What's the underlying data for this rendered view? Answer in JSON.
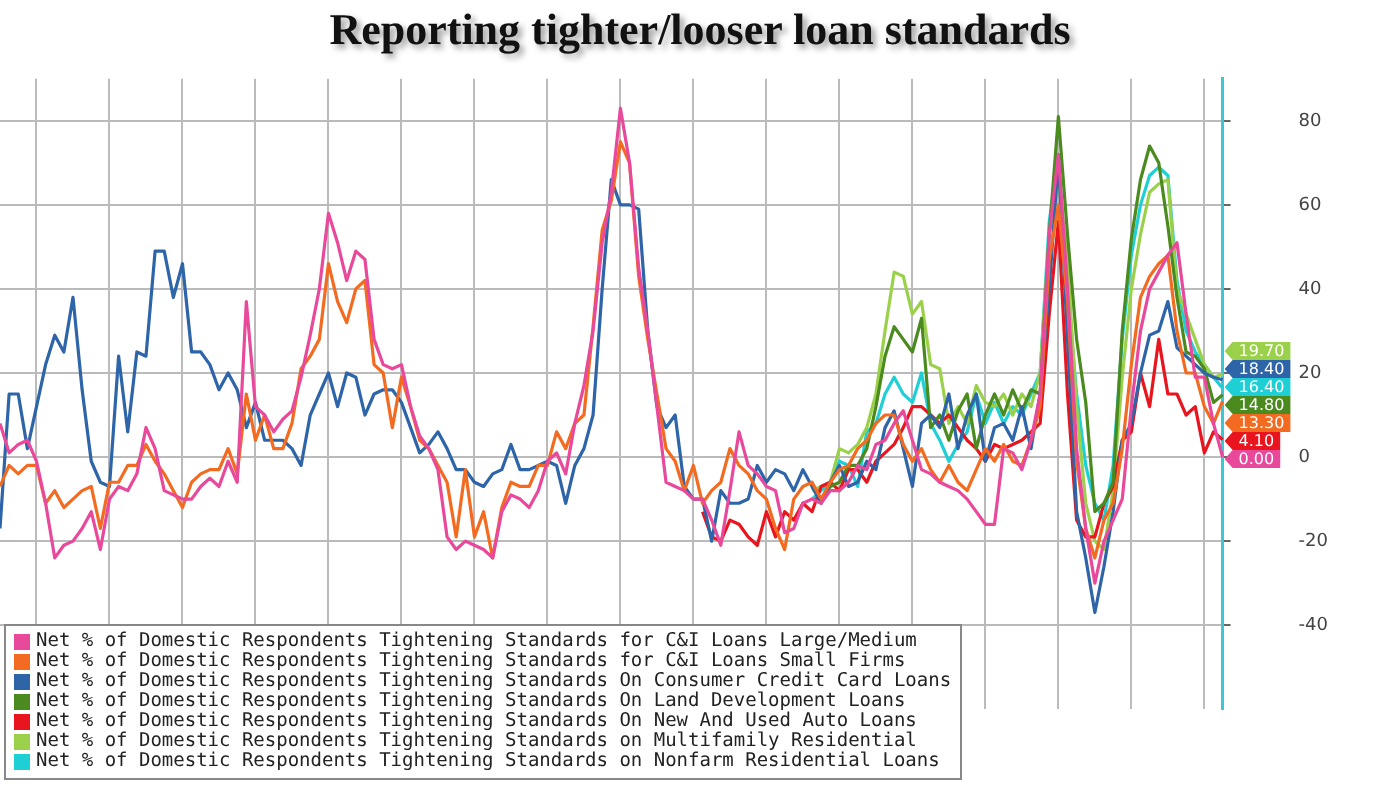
{
  "chart_data": {
    "type": "line",
    "title": "Reporting tighter/looser loan standards",
    "categories": [
      null,
      null,
      null,
      null,
      null,
      null,
      null,
      null,
      null,
      null,
      null,
      null,
      null,
      null,
      null,
      null,
      null,
      null,
      null,
      null,
      null,
      null,
      null,
      null,
      null,
      null,
      null,
      null,
      null,
      null,
      null,
      null,
      null,
      null,
      null,
      null,
      null,
      null,
      null,
      null,
      null,
      null,
      null,
      null,
      null,
      null,
      null,
      null,
      null,
      null,
      null,
      null,
      null,
      null,
      null,
      null,
      null,
      null,
      null,
      null,
      null,
      null,
      null,
      null,
      null,
      null,
      null,
      null,
      null,
      null,
      null,
      null,
      null,
      null,
      null,
      null,
      null,
      null,
      null,
      null,
      null,
      null,
      null,
      null,
      null,
      null,
      null,
      null,
      null,
      null,
      null,
      null,
      null,
      null,
      null,
      null,
      null,
      null,
      null,
      null,
      null,
      null,
      null,
      null,
      null,
      null,
      null,
      null,
      null,
      null,
      null,
      null,
      null,
      null,
      null,
      null,
      null,
      null,
      null,
      null,
      null,
      null,
      null,
      null,
      null,
      null,
      null,
      null,
      null,
      null,
      null,
      null,
      null,
      null,
      null
    ],
    "ylim": [
      -60,
      90
    ],
    "yticks": [
      -40,
      -20,
      0,
      20,
      40,
      60,
      80
    ],
    "grid": true,
    "legend": "bottom left",
    "marker": "none",
    "line_style": "solid",
    "series": [
      {
        "name": "Net % of Domestic Respondents Tightening Standards for C&I Loans Large/Medium",
        "color": "#e8499b",
        "value_labels": [
          null,
          null,
          null,
          null,
          null,
          null,
          null,
          null,
          null,
          null,
          null,
          null,
          null,
          null,
          null,
          null,
          null,
          null,
          null,
          null,
          null,
          null,
          null,
          null,
          null,
          null,
          null,
          null,
          null,
          null,
          null,
          null,
          null,
          null,
          null,
          null,
          null,
          null,
          null,
          null,
          null,
          null,
          null,
          null,
          null,
          null,
          null,
          null,
          null,
          null,
          null,
          null,
          null,
          null,
          null,
          null,
          null,
          null,
          null,
          null,
          null,
          null,
          null,
          null,
          null,
          null,
          null,
          null,
          null,
          null,
          null,
          null,
          null,
          null,
          null,
          null,
          null,
          null,
          null,
          null,
          null,
          null,
          null,
          null,
          null,
          null,
          null,
          null,
          null,
          null,
          null,
          null,
          null,
          null,
          null,
          null,
          null,
          null,
          null,
          null,
          null,
          null,
          null,
          null,
          null,
          null,
          null,
          null,
          null,
          null,
          null,
          null,
          null,
          null,
          null,
          null,
          null,
          null,
          null,
          null,
          null,
          null,
          null,
          null,
          null,
          null,
          null,
          null,
          null,
          null,
          null,
          null,
          null,
          null,
          "0.00"
        ],
        "values": [
          8,
          1,
          3,
          4,
          -1,
          -11,
          -24,
          -21,
          -20,
          -17,
          -13,
          -22,
          -10,
          -7,
          -8,
          -4,
          7,
          2,
          -8,
          -9,
          -10,
          -10,
          -7,
          -5,
          -7,
          -1,
          -6,
          37,
          12,
          10,
          6,
          9,
          11,
          19,
          29,
          40,
          58,
          51,
          42,
          49,
          47,
          28,
          22,
          21,
          22,
          12,
          5,
          2,
          -3,
          -19,
          -22,
          -20,
          -21,
          -22,
          -24,
          -13,
          -9,
          -10,
          -12,
          -8,
          -1,
          1,
          -4,
          8,
          17,
          30,
          51,
          63,
          83,
          70,
          45,
          30,
          12,
          -6,
          -7,
          -8,
          -10,
          -10,
          -15,
          -21,
          -8,
          6,
          -2,
          -4,
          -7,
          -8,
          -18,
          -17,
          -11,
          -10,
          -11,
          -8,
          -8,
          -6,
          -2,
          -3,
          3,
          4,
          8,
          11,
          4,
          -3,
          -4,
          -6,
          -7,
          -8,
          -10,
          -13,
          -16,
          -16,
          2,
          1,
          -3,
          4,
          15,
          53,
          72,
          40,
          2,
          -17,
          -30,
          -20,
          -15,
          -10,
          12,
          30,
          40,
          44,
          48,
          51,
          34,
          19,
          19,
          8,
          0
        ]
      },
      {
        "name": "Net % of Domestic Respondents Tightening Standards for C&I Loans Small Firms",
        "color": "#f26b21",
        "value_labels": [
          null,
          null,
          null,
          null,
          null,
          null,
          null,
          null,
          null,
          null,
          null,
          null,
          null,
          null,
          null,
          null,
          null,
          null,
          null,
          null,
          null,
          null,
          null,
          null,
          null,
          null,
          null,
          null,
          null,
          null,
          null,
          null,
          null,
          null,
          null,
          null,
          null,
          null,
          null,
          null,
          null,
          null,
          null,
          null,
          null,
          null,
          null,
          null,
          null,
          null,
          null,
          null,
          null,
          null,
          null,
          null,
          null,
          null,
          null,
          null,
          null,
          null,
          null,
          null,
          null,
          null,
          null,
          null,
          null,
          null,
          null,
          null,
          null,
          null,
          null,
          null,
          null,
          null,
          null,
          null,
          null,
          null,
          null,
          null,
          null,
          null,
          null,
          null,
          null,
          null,
          null,
          null,
          null,
          null,
          null,
          null,
          null,
          null,
          null,
          null,
          null,
          null,
          null,
          null,
          null,
          null,
          null,
          null,
          null,
          null,
          null,
          null,
          null,
          null,
          null,
          null,
          null,
          null,
          null,
          null,
          null,
          null,
          null,
          null,
          null,
          null,
          null,
          null,
          null,
          null,
          null,
          null,
          null,
          null,
          "13.30"
        ],
        "values": [
          -7,
          -2,
          -4,
          -2,
          -2,
          -11,
          -8,
          -12,
          -10,
          -8,
          -7,
          -17,
          -6,
          -6,
          -2,
          -2,
          3,
          -1,
          -4,
          -8,
          -12,
          -6,
          -4,
          -3,
          -3,
          2,
          -4,
          15,
          4,
          10,
          2,
          2,
          8,
          21,
          24,
          28,
          46,
          37,
          32,
          40,
          42,
          22,
          20,
          7,
          19,
          12,
          4,
          2,
          -2,
          -6,
          -19,
          -3,
          -19,
          -13,
          -24,
          -12,
          -6,
          -7,
          -7,
          -2,
          -2,
          6,
          2,
          8,
          10,
          31,
          54,
          61,
          75,
          70,
          43,
          28,
          15,
          2,
          -1,
          -8,
          -2,
          -11,
          -8,
          -6,
          2,
          -2,
          -4,
          -8,
          -10,
          -17,
          -22,
          -10,
          -7,
          -6,
          -10,
          -6,
          -3,
          -2,
          2,
          4,
          8,
          10,
          10,
          3,
          -1,
          2,
          -3,
          -6,
          -2,
          -6,
          -8,
          -3,
          2,
          -1,
          3,
          -1,
          -2,
          4,
          12,
          47,
          60,
          37,
          -1,
          -17,
          -24,
          -15,
          -11,
          2,
          22,
          38,
          43,
          46,
          48,
          30,
          20,
          20,
          12,
          8,
          13.3
        ]
      },
      {
        "name": "Net % of Domestic Respondents Tightening Standards On Consumer Credit Card Loans",
        "color": "#2e64a8",
        "value_labels": [
          null,
          null,
          null,
          null,
          null,
          null,
          null,
          null,
          null,
          null,
          null,
          null,
          null,
          null,
          null,
          null,
          null,
          null,
          null,
          null,
          null,
          null,
          null,
          null,
          null,
          null,
          null,
          null,
          null,
          null,
          null,
          null,
          null,
          null,
          null,
          null,
          null,
          null,
          null,
          null,
          null,
          null,
          null,
          null,
          null,
          null,
          null,
          null,
          null,
          null,
          null,
          null,
          null,
          null,
          null,
          null,
          null,
          null,
          null,
          null,
          null,
          null,
          null,
          null,
          null,
          null,
          null,
          null,
          null,
          null,
          null,
          null,
          null,
          null,
          null,
          null,
          null,
          null,
          null,
          null,
          null,
          null,
          null,
          null,
          null,
          null,
          null,
          null,
          null,
          null,
          null,
          null,
          null,
          null,
          null,
          null,
          null,
          null,
          null,
          null,
          null,
          null,
          null,
          null,
          null,
          null,
          null,
          null,
          null,
          null,
          null,
          null,
          null,
          null,
          null,
          null,
          null,
          null,
          null,
          null,
          null,
          null,
          null,
          null,
          null,
          null,
          null,
          null,
          null,
          null,
          null,
          null,
          null,
          null,
          "18.40"
        ],
        "values": [
          -17,
          15,
          15,
          2,
          12,
          22,
          29,
          25,
          38,
          16,
          -1,
          -6,
          -7,
          24,
          6,
          25,
          24,
          49,
          49,
          38,
          46,
          25,
          25,
          22,
          16,
          20,
          16,
          7,
          13,
          4,
          4,
          4,
          2,
          -2,
          10,
          15,
          20,
          12,
          20,
          19,
          10,
          15,
          16,
          16,
          13,
          7,
          1,
          3,
          6,
          2,
          -3,
          -3,
          -6,
          -7,
          -4,
          -3,
          3,
          -3,
          -3,
          -2,
          -1,
          -2,
          -11,
          -2,
          2,
          10,
          40,
          66,
          60,
          60,
          59,
          30,
          12,
          7,
          10,
          -7,
          -10,
          -10,
          -20,
          -8,
          -11,
          -11,
          -10,
          -2,
          -6,
          -3,
          -4,
          -8,
          -3,
          -7,
          -11,
          -6,
          -2,
          -7,
          -6,
          -1,
          -3,
          7,
          11,
          2,
          -7,
          8,
          10,
          7,
          15,
          2,
          10,
          15,
          -1,
          7,
          8,
          4,
          12,
          2,
          15,
          40,
          71,
          28,
          -13,
          -24,
          -37,
          -26,
          -13,
          4,
          8,
          20,
          29,
          30,
          37,
          26,
          24,
          22,
          20,
          19,
          18.4
        ]
      },
      {
        "name": "Net % of Domestic Respondents Tightening Standards On Land Development Loans",
        "color": "#4a8a1f",
        "value_labels": [
          null,
          null,
          null,
          null,
          null,
          null,
          null,
          null,
          null,
          null,
          null,
          null,
          null,
          null,
          null,
          null,
          null,
          null,
          null,
          null,
          null,
          null,
          null,
          null,
          null,
          null,
          null,
          null,
          null,
          null,
          null,
          null,
          null,
          null,
          null,
          null,
          null,
          null,
          null,
          null,
          null,
          null,
          null,
          null,
          null,
          null,
          null,
          null,
          null,
          null,
          null,
          null,
          null,
          null,
          null,
          null,
          null,
          null,
          null,
          null,
          null,
          null,
          null,
          null,
          null,
          null,
          null,
          null,
          null,
          null,
          null,
          null,
          null,
          null,
          null,
          null,
          null,
          null,
          null,
          null,
          null,
          null,
          null,
          null,
          null,
          null,
          null,
          null,
          null,
          null,
          null,
          null,
          null,
          null,
          null,
          null,
          null,
          null,
          null,
          null,
          null,
          null,
          null,
          null,
          null,
          null,
          null,
          null,
          null,
          null,
          null,
          null,
          null,
          null,
          null,
          null,
          null,
          null,
          null,
          null,
          null,
          null,
          null,
          null,
          null,
          null,
          null,
          null,
          null,
          null,
          null,
          null,
          null,
          null,
          "14.80"
        ],
        "values": [
          null,
          null,
          null,
          null,
          null,
          null,
          null,
          null,
          null,
          null,
          null,
          null,
          null,
          null,
          null,
          null,
          null,
          null,
          null,
          null,
          null,
          null,
          null,
          null,
          null,
          null,
          null,
          null,
          null,
          null,
          null,
          null,
          null,
          null,
          null,
          null,
          null,
          null,
          null,
          null,
          null,
          null,
          null,
          null,
          null,
          null,
          null,
          null,
          null,
          null,
          null,
          null,
          null,
          null,
          null,
          null,
          null,
          null,
          null,
          null,
          null,
          null,
          null,
          null,
          null,
          null,
          null,
          null,
          null,
          null,
          null,
          null,
          null,
          null,
          null,
          null,
          null,
          null,
          null,
          null,
          null,
          null,
          null,
          null,
          null,
          null,
          null,
          null,
          null,
          -7,
          -10,
          -7,
          -6,
          -2,
          -2,
          2,
          12,
          24,
          31,
          28,
          25,
          33,
          7,
          10,
          4,
          11,
          15,
          2,
          10,
          15,
          10,
          16,
          11,
          16,
          15,
          53,
          81,
          53,
          28,
          13,
          -13,
          -11,
          -6,
          30,
          52,
          66,
          74,
          70,
          55,
          38,
          25,
          24,
          21,
          13,
          14.8
        ]
      },
      {
        "name": "Net % of Domestic Respondents Tightening Standards On New And Used Auto Loans",
        "color": "#e8141e",
        "value_labels": [
          null,
          null,
          null,
          null,
          null,
          null,
          null,
          null,
          null,
          null,
          null,
          null,
          null,
          null,
          null,
          null,
          null,
          null,
          null,
          null,
          null,
          null,
          null,
          null,
          null,
          null,
          null,
          null,
          null,
          null,
          null,
          null,
          null,
          null,
          null,
          null,
          null,
          null,
          null,
          null,
          null,
          null,
          null,
          null,
          null,
          null,
          null,
          null,
          null,
          null,
          null,
          null,
          null,
          null,
          null,
          null,
          null,
          null,
          null,
          null,
          null,
          null,
          null,
          null,
          null,
          null,
          null,
          null,
          null,
          null,
          null,
          null,
          null,
          null,
          null,
          null,
          null,
          null,
          null,
          null,
          null,
          null,
          null,
          null,
          null,
          null,
          null,
          null,
          null,
          null,
          null,
          null,
          null,
          null,
          null,
          null,
          null,
          null,
          null,
          null,
          null,
          null,
          null,
          null,
          null,
          null,
          null,
          null,
          null,
          null,
          null,
          null,
          null,
          null,
          null,
          null,
          null,
          null,
          null,
          null,
          null,
          null,
          null,
          null,
          null,
          null,
          null,
          null,
          null,
          null,
          null,
          null,
          null,
          null,
          "4.10"
        ],
        "values": [
          null,
          null,
          null,
          null,
          null,
          null,
          null,
          null,
          null,
          null,
          null,
          null,
          null,
          null,
          null,
          null,
          null,
          null,
          null,
          null,
          null,
          null,
          null,
          null,
          null,
          null,
          null,
          null,
          null,
          null,
          null,
          null,
          null,
          null,
          null,
          null,
          null,
          null,
          null,
          null,
          null,
          null,
          null,
          null,
          null,
          null,
          null,
          null,
          null,
          null,
          null,
          null,
          null,
          null,
          null,
          null,
          null,
          null,
          null,
          null,
          null,
          null,
          null,
          null,
          null,
          null,
          null,
          null,
          null,
          null,
          null,
          null,
          null,
          null,
          null,
          null,
          null,
          -13,
          -19,
          -20,
          -15,
          -16,
          -19,
          -21,
          -13,
          -19,
          -13,
          -15,
          -11,
          -13,
          -7,
          -6,
          -8,
          -3,
          -3,
          -6,
          -1,
          1,
          3,
          7,
          12,
          12,
          10,
          8,
          10,
          7,
          4,
          2,
          -1,
          3,
          2,
          3,
          4,
          6,
          8,
          34,
          56,
          15,
          -15,
          -19,
          -19,
          -11,
          -7,
          4,
          6,
          20,
          12,
          28,
          15,
          15,
          10,
          12,
          1,
          6,
          4.1
        ]
      },
      {
        "name": "Net % of Domestic Respondents Tightening Standards on Multifamily Residential",
        "color": "#9bd14a",
        "value_labels": [
          null,
          null,
          null,
          null,
          null,
          null,
          null,
          null,
          null,
          null,
          null,
          null,
          null,
          null,
          null,
          null,
          null,
          null,
          null,
          null,
          null,
          null,
          null,
          null,
          null,
          null,
          null,
          null,
          null,
          null,
          null,
          null,
          null,
          null,
          null,
          null,
          null,
          null,
          null,
          null,
          null,
          null,
          null,
          null,
          null,
          null,
          null,
          null,
          null,
          null,
          null,
          null,
          null,
          null,
          null,
          null,
          null,
          null,
          null,
          null,
          null,
          null,
          null,
          null,
          null,
          null,
          null,
          null,
          null,
          null,
          null,
          null,
          null,
          null,
          null,
          null,
          null,
          null,
          null,
          null,
          null,
          null,
          null,
          null,
          null,
          null,
          null,
          null,
          null,
          null,
          null,
          null,
          null,
          null,
          null,
          null,
          null,
          null,
          null,
          null,
          null,
          null,
          null,
          null,
          null,
          null,
          null,
          null,
          null,
          null,
          null,
          null,
          null,
          null,
          null,
          null,
          null,
          null,
          null,
          null,
          null,
          null,
          null,
          null,
          null,
          null,
          null,
          null,
          null,
          null,
          null,
          null,
          null,
          null,
          "19.70"
        ],
        "values": [
          null,
          null,
          null,
          null,
          null,
          null,
          null,
          null,
          null,
          null,
          null,
          null,
          null,
          null,
          null,
          null,
          null,
          null,
          null,
          null,
          null,
          null,
          null,
          null,
          null,
          null,
          null,
          null,
          null,
          null,
          null,
          null,
          null,
          null,
          null,
          null,
          null,
          null,
          null,
          null,
          null,
          null,
          null,
          null,
          null,
          null,
          null,
          null,
          null,
          null,
          null,
          null,
          null,
          null,
          null,
          null,
          null,
          null,
          null,
          null,
          null,
          null,
          null,
          null,
          null,
          null,
          null,
          null,
          null,
          null,
          null,
          null,
          null,
          null,
          null,
          null,
          null,
          null,
          null,
          null,
          null,
          null,
          null,
          null,
          null,
          null,
          null,
          null,
          null,
          -8,
          -7,
          -6,
          2,
          1,
          3,
          7,
          15,
          30,
          44,
          43,
          34,
          37,
          22,
          21,
          8,
          12,
          8,
          17,
          13,
          12,
          15,
          10,
          15,
          12,
          20,
          53,
          66,
          47,
          12,
          -11,
          -20,
          -22,
          -8,
          19,
          40,
          53,
          63,
          65,
          66,
          40,
          34,
          28,
          22,
          19,
          19.7
        ]
      },
      {
        "name": "Net % of Domestic Respondents Tightening Standards on Nonfarm Residential Loans",
        "color": "#1fcfd6",
        "value_labels": [
          null,
          null,
          null,
          null,
          null,
          null,
          null,
          null,
          null,
          null,
          null,
          null,
          null,
          null,
          null,
          null,
          null,
          null,
          null,
          null,
          null,
          null,
          null,
          null,
          null,
          null,
          null,
          null,
          null,
          null,
          null,
          null,
          null,
          null,
          null,
          null,
          null,
          null,
          null,
          null,
          null,
          null,
          null,
          null,
          null,
          null,
          null,
          null,
          null,
          null,
          null,
          null,
          null,
          null,
          null,
          null,
          null,
          null,
          null,
          null,
          null,
          null,
          null,
          null,
          null,
          null,
          null,
          null,
          null,
          null,
          null,
          null,
          null,
          null,
          null,
          null,
          null,
          null,
          null,
          null,
          null,
          null,
          null,
          null,
          null,
          null,
          null,
          null,
          null,
          null,
          null,
          null,
          null,
          null,
          null,
          null,
          null,
          null,
          null,
          null,
          null,
          null,
          null,
          null,
          null,
          null,
          null,
          null,
          null,
          null,
          null,
          null,
          null,
          null,
          null,
          null,
          null,
          null,
          null,
          null,
          null,
          null,
          null,
          null,
          null,
          null,
          null,
          null,
          null,
          null,
          null,
          null,
          null,
          null,
          "16.40"
        ],
        "values": [
          null,
          null,
          null,
          null,
          null,
          null,
          null,
          null,
          null,
          null,
          null,
          null,
          null,
          null,
          null,
          null,
          null,
          null,
          null,
          null,
          null,
          null,
          null,
          null,
          null,
          null,
          null,
          null,
          null,
          null,
          null,
          null,
          null,
          null,
          null,
          null,
          null,
          null,
          null,
          null,
          null,
          null,
          null,
          null,
          null,
          null,
          null,
          null,
          null,
          null,
          null,
          null,
          null,
          null,
          null,
          null,
          null,
          null,
          null,
          null,
          null,
          null,
          null,
          null,
          null,
          null,
          null,
          null,
          null,
          null,
          null,
          null,
          null,
          null,
          null,
          null,
          null,
          null,
          null,
          null,
          null,
          null,
          null,
          null,
          null,
          null,
          null,
          null,
          null,
          -10,
          -8,
          -6,
          -1,
          -2,
          -7,
          6,
          8,
          15,
          19,
          15,
          13,
          20,
          8,
          4,
          -1,
          3,
          6,
          15,
          8,
          13,
          8,
          12,
          10,
          15,
          20,
          56,
          72,
          40,
          15,
          -2,
          -11,
          -15,
          -2,
          28,
          48,
          60,
          67,
          69,
          67,
          42,
          30,
          25,
          22,
          19,
          16.4
        ]
      }
    ]
  }
}
